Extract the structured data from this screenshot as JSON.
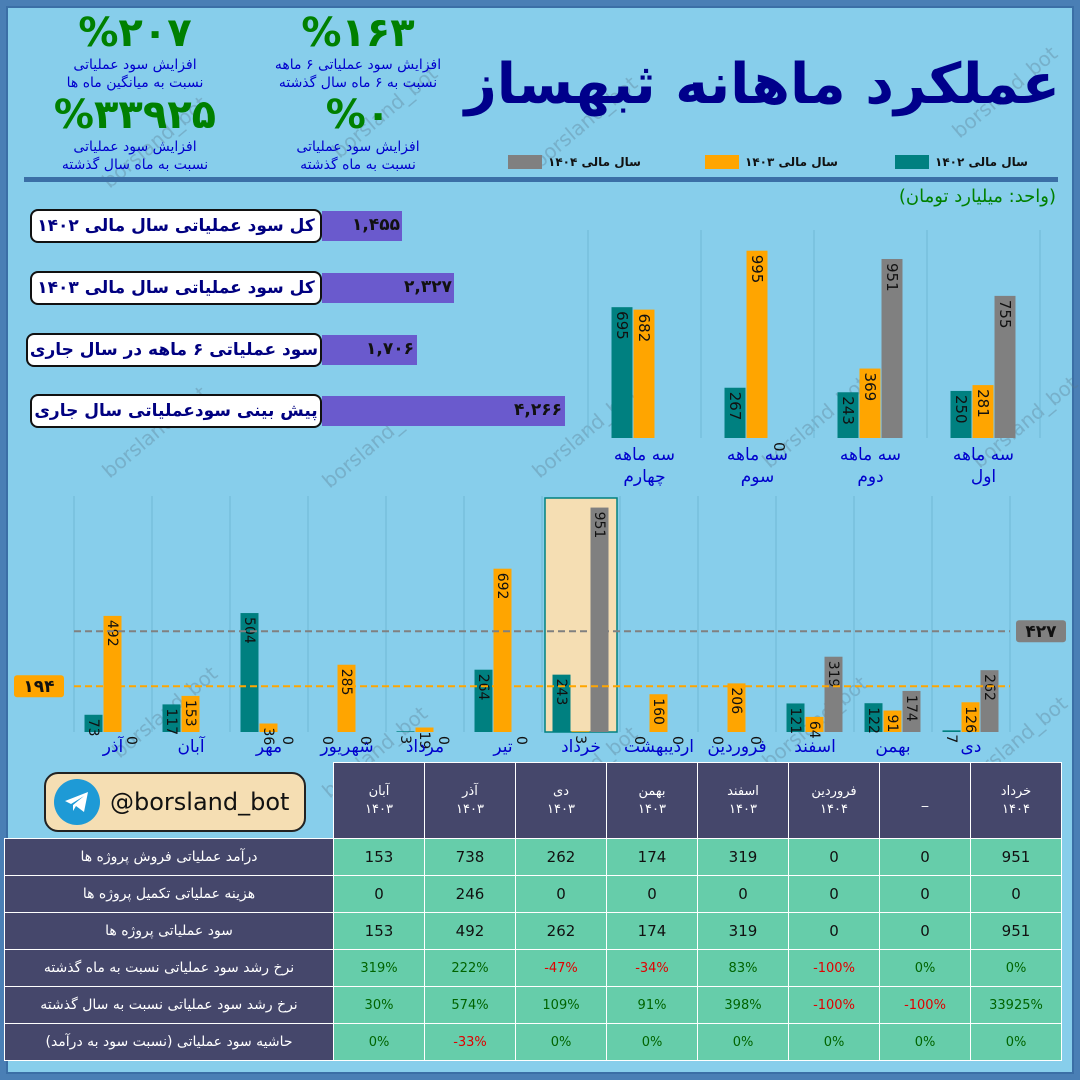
{
  "title": "عملکرد ماهانه ثبهساز",
  "kpis": [
    {
      "value": "%۲۰۷",
      "line1": "افزایش سود عملیاتی",
      "line2": "نسبت به میانگین ماه ها"
    },
    {
      "value": "%۱۶۳",
      "line1": "افزایش سود عملیاتی ۶ ماهه",
      "line2": "نسبت به ۶ ماه سال گذشته"
    },
    {
      "value": "%۳۳۹۲۵",
      "line1": "افزایش سود عملیاتی",
      "line2": "نسبت به ماه سال گذشته"
    },
    {
      "value": "%۰",
      "line1": "افزایش سود عملیاتی",
      "line2": "نسبت به ماه گذشته"
    }
  ],
  "legend": [
    {
      "label": "سال مالی ۱۴۰۲",
      "color": "#008080"
    },
    {
      "label": "سال مالی ۱۴۰۳",
      "color": "#ffa500"
    },
    {
      "label": "سال مالی ۱۴۰۴",
      "color": "#808080"
    }
  ],
  "unit": "(واحد: میلیارد تومان)",
  "summary": [
    {
      "label": "کل سود عملیاتی سال مالی ۱۴۰۲",
      "value": "۱,۴۵۵",
      "num": 1455
    },
    {
      "label": "کل سود عملیاتی سال مالی ۱۴۰۳",
      "value": "۲,۳۲۷",
      "num": 2327
    },
    {
      "label": "سود عملیاتی ۶ ماهه در سال جاری",
      "value": "۱,۷۰۶",
      "num": 1706
    },
    {
      "label": "پیش بینی سودعملیاتی سال جاری",
      "value": "۴,۲۶۶",
      "num": 4266
    }
  ],
  "brand": "@borsland_bot",
  "watermark": "borsland_bot",
  "chart_data": [
    {
      "type": "bar",
      "categories": [
        "سه ماهه اول",
        "سه ماهه دوم",
        "سه ماهه سوم",
        "سه ماهه چهارم"
      ],
      "series": [
        {
          "name": "سال مالی ۱۴۰۲",
          "values": [
            250,
            243,
            267,
            695
          ]
        },
        {
          "name": "سال مالی ۱۴۰۳",
          "values": [
            281,
            369,
            995,
            682
          ]
        },
        {
          "name": "سال مالی ۱۴۰۴",
          "values": [
            755,
            951,
            0,
            null
          ]
        }
      ],
      "ylim": [
        0,
        1020
      ]
    },
    {
      "type": "bar",
      "categories": [
        "دی",
        "بهمن",
        "اسفند",
        "فروردین",
        "اردیبهشت",
        "خرداد",
        "تیر",
        "مرداد",
        "شهریور",
        "مهر",
        "آبان",
        "آذر"
      ],
      "series": [
        {
          "name": "سال مالی ۱۴۰۲",
          "values": [
            7,
            122,
            121,
            0,
            0,
            243,
            264,
            3,
            0,
            504,
            117,
            73
          ]
        },
        {
          "name": "سال مالی ۱۴۰۳",
          "values": [
            126,
            91,
            64,
            206,
            160,
            3,
            692,
            19,
            285,
            36,
            153,
            492
          ]
        },
        {
          "name": "سال مالی ۱۴۰۴",
          "values": [
            262,
            174,
            319,
            0,
            0,
            951,
            0,
            0,
            0,
            0,
            null,
            0
          ]
        }
      ],
      "reference_lines": [
        {
          "label": "۴۲۷",
          "value": 427,
          "color": "#808080"
        },
        {
          "label": "۱۹۴",
          "value": 194,
          "color": "#ffa500"
        }
      ],
      "highlight": "خرداد",
      "ylim": [
        0,
        1000
      ]
    }
  ],
  "table": {
    "columns": [
      {
        "month": "آبان",
        "year": "۱۴۰۳"
      },
      {
        "month": "آذر",
        "year": "۱۴۰۳"
      },
      {
        "month": "دی",
        "year": "۱۴۰۳"
      },
      {
        "month": "بهمن",
        "year": "۱۴۰۳"
      },
      {
        "month": "اسفند",
        "year": "۱۴۰۳"
      },
      {
        "month": "فروردین",
        "year": "۱۴۰۴"
      },
      {
        "month": "_",
        "year": ""
      },
      {
        "month": "خرداد",
        "year": "۱۴۰۴"
      }
    ],
    "rows": [
      {
        "label": "درآمد عملیاتی فروش پروژه ها",
        "values": [
          "153",
          "738",
          "262",
          "174",
          "319",
          "0",
          "0",
          "951"
        ]
      },
      {
        "label": "هزینه عملیاتی تکمیل پروژه ها",
        "values": [
          "0",
          "246",
          "0",
          "0",
          "0",
          "0",
          "0",
          "0"
        ]
      },
      {
        "label": "سود عملیاتی پروژه ها",
        "values": [
          "153",
          "492",
          "262",
          "174",
          "319",
          "0",
          "0",
          "951"
        ]
      },
      {
        "label": "نرخ رشد سود عملیاتی نسبت به ماه گذشته",
        "values": [
          "319%",
          "222%",
          "-47%",
          "-34%",
          "83%",
          "-100%",
          "0%",
          "0%"
        ]
      },
      {
        "label": "نرخ رشد سود عملیاتی نسبت به سال گذشته",
        "values": [
          "30%",
          "574%",
          "109%",
          "91%",
          "398%",
          "-100%",
          "-100%",
          "33925%"
        ]
      },
      {
        "label": "حاشیه سود عملیاتی (نسبت سود به درآمد)",
        "values": [
          "0%",
          "-33%",
          "0%",
          "0%",
          "0%",
          "0%",
          "0%",
          "0%"
        ]
      }
    ]
  }
}
